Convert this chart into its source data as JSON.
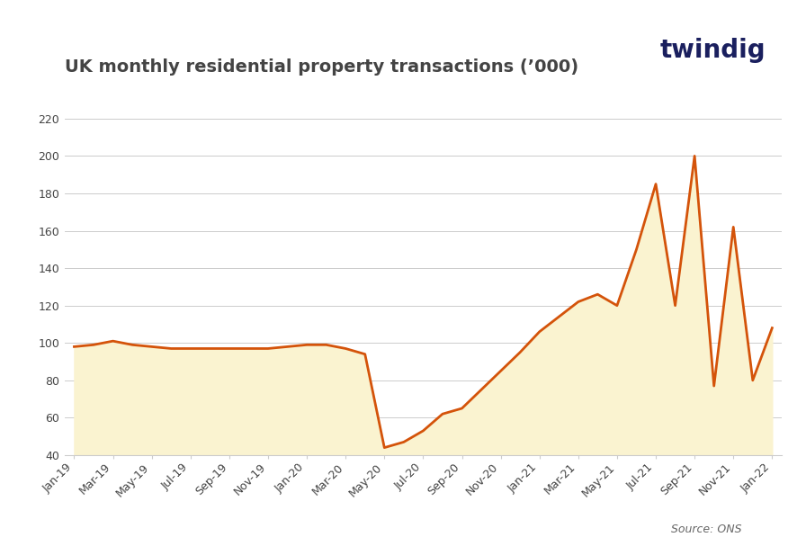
{
  "title": "UK monthly residential property transactions (’000)",
  "source_text": "Source: ONS",
  "twindig_text": "twindig",
  "line_color": "#D4530A",
  "fill_color": "#FAF3D0",
  "background_color": "#FFFFFF",
  "line_width": 2.0,
  "ylim": [
    40,
    230
  ],
  "yticks": [
    40,
    60,
    80,
    100,
    120,
    140,
    160,
    180,
    200,
    220
  ],
  "x_labels": [
    "Jan-19",
    "Mar-19",
    "May-19",
    "Jul-19",
    "Sep-19",
    "Nov-19",
    "Jan-20",
    "Mar-20",
    "May-20",
    "Jul-20",
    "Sep-20",
    "Nov-20",
    "Jan-21",
    "Mar-21",
    "May-21",
    "Jul-21",
    "Sep-21",
    "Nov-21",
    "Jan-22"
  ],
  "x_tick_pos": [
    0,
    2,
    4,
    6,
    8,
    10,
    12,
    14,
    16,
    18,
    20,
    22,
    24,
    26,
    28,
    30,
    32,
    34,
    36
  ],
  "data_x": [
    0,
    1,
    2,
    3,
    4,
    5,
    6,
    7,
    8,
    9,
    10,
    11,
    12,
    13,
    14,
    15,
    16,
    17,
    18,
    19,
    20,
    21,
    22,
    23,
    24,
    25,
    26,
    27,
    28,
    29,
    30,
    31,
    32,
    33,
    34,
    35,
    36
  ],
  "data_y": [
    98,
    99,
    101,
    99,
    98,
    97,
    97,
    97,
    97,
    97,
    97,
    98,
    99,
    99,
    97,
    94,
    44,
    47,
    53,
    62,
    65,
    75,
    85,
    95,
    106,
    114,
    122,
    126,
    120,
    150,
    185,
    120,
    200,
    77,
    162,
    80,
    108
  ],
  "fill_baseline": 40,
  "title_fontsize": 14,
  "tick_fontsize": 9,
  "source_fontsize": 9,
  "twindig_fontsize": 20,
  "grid_color": "#CCCCCC",
  "text_color": "#444444",
  "source_color": "#666666",
  "twindig_color": "#1A1F5E"
}
